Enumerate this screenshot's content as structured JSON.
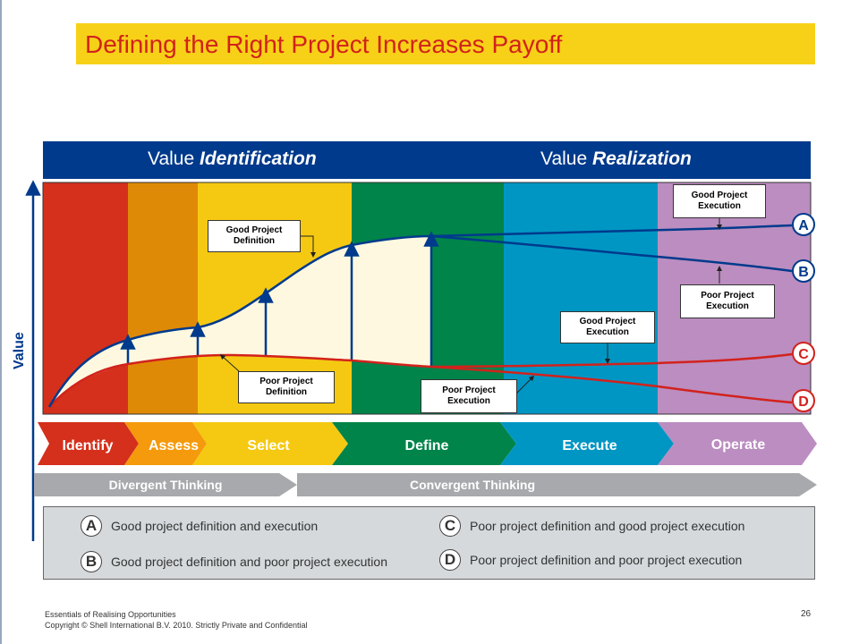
{
  "title": "Defining the Right Project Increases Payoff",
  "header": {
    "identification_prefix": "Value ",
    "identification_word": "Identification",
    "realization_prefix": "Value ",
    "realization_word": "Realization"
  },
  "y_axis_label": "Value",
  "phases": [
    "Identify",
    "Assess",
    "Select",
    "Define",
    "Execute",
    "Operate"
  ],
  "thinking": {
    "divergent": "Divergent Thinking",
    "convergent": "Convergent Thinking"
  },
  "curve_labels": [
    "A",
    "B",
    "C",
    "D"
  ],
  "callouts": {
    "good_definition": [
      "Good Project",
      "Definition"
    ],
    "poor_definition": [
      "Poor Project",
      "Definition"
    ],
    "poor_execution_define": [
      "Poor Project",
      "Execution"
    ],
    "good_execution_execute": [
      "Good Project",
      "Execution"
    ],
    "good_execution_operate": [
      "Good Project",
      "Execution"
    ],
    "poor_execution_operate": [
      "Poor Project",
      "Execution"
    ]
  },
  "legend": [
    {
      "letter": "A",
      "text": "Good project definition and execution"
    },
    {
      "letter": "B",
      "text": "Good project definition and poor project execution"
    },
    {
      "letter": "C",
      "text": "Poor project definition and good project execution"
    },
    {
      "letter": "D",
      "text": "Poor project definition and poor project execution"
    }
  ],
  "footer": {
    "line1": "Essentials of Realising Opportunities",
    "line2": "Copyright © Shell International B.V. 2010. Strictly Private and Confidential"
  },
  "page_number": "26",
  "colors": {
    "identify": "#d4301c",
    "assess": "#df8a06",
    "select": "#f5c912",
    "define": "#00844a",
    "execute": "#0096c4",
    "operate": "#bb8dc0",
    "navy": "#003a8c",
    "red_curve": "#d2221c",
    "cream_fill": "#fdf8df",
    "title_bar": "#f7d117",
    "thinking_arrow": "#a7a9ac"
  }
}
